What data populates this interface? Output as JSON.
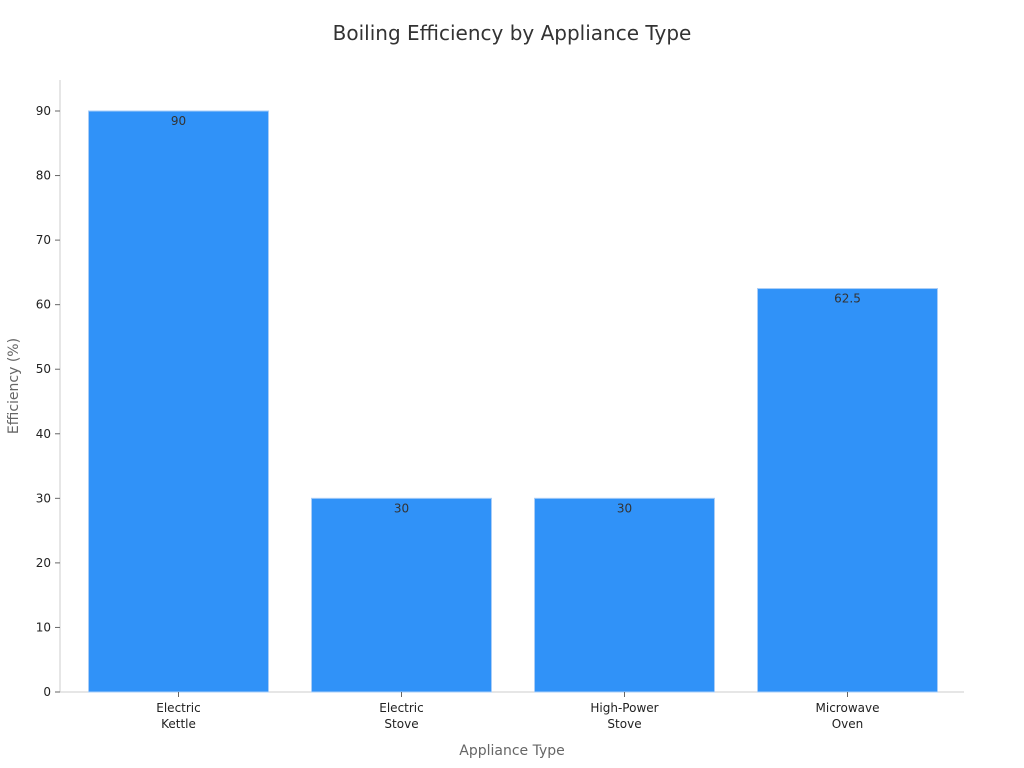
{
  "chart_data": {
    "type": "bar",
    "title": "Boiling Efficiency by Appliance Type",
    "xlabel": "Appliance Type",
    "ylabel": "Efficiency (%)",
    "categories": [
      [
        "Electric",
        "Kettle"
      ],
      [
        "Electric",
        "Stove"
      ],
      [
        "High-Power",
        "Stove"
      ],
      [
        "Microwave",
        "Oven"
      ]
    ],
    "values": [
      90,
      30,
      30,
      62.5
    ],
    "data_labels": [
      "90",
      "30",
      "30",
      "62.5"
    ],
    "yticks": [
      0,
      10,
      20,
      30,
      40,
      50,
      60,
      70,
      80,
      90
    ],
    "ylim": [
      0,
      95
    ],
    "bar_color": "#3092f8",
    "bar_edge_color": "#a9cdf7",
    "grid": false,
    "legend": "none"
  }
}
